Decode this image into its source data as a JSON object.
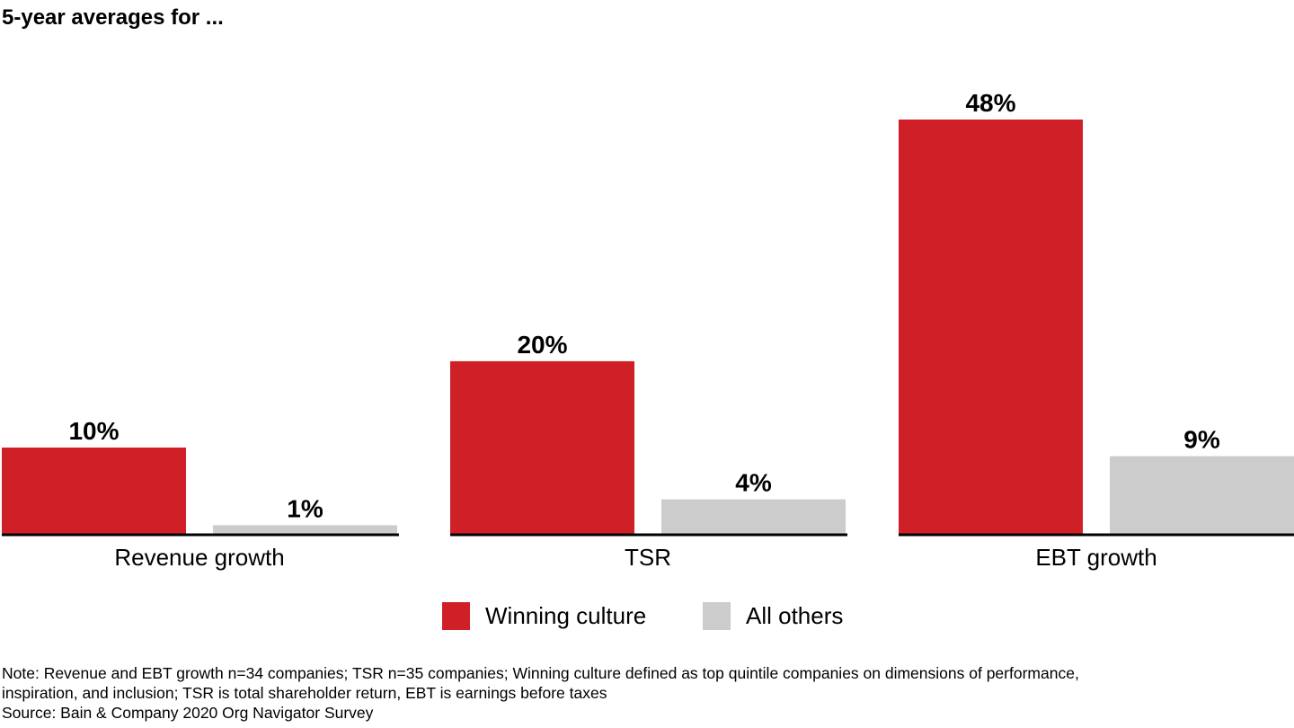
{
  "title": "5-year averages for ...",
  "colors": {
    "winning": "#cf2027",
    "others": "#cccccc",
    "axis": "#000000"
  },
  "chart_data": {
    "type": "bar",
    "categories": [
      "Revenue growth",
      "TSR",
      "EBT growth"
    ],
    "series": [
      {
        "name": "Winning culture",
        "values": [
          10,
          20,
          48
        ],
        "labels": [
          "10%",
          "20%",
          "48%"
        ]
      },
      {
        "name": "All others",
        "values": [
          1,
          4,
          9
        ],
        "labels": [
          "1%",
          "4%",
          "9%"
        ]
      }
    ],
    "ylim": [
      0,
      48
    ],
    "grid": false,
    "legend": "bottom-center"
  },
  "note": {
    "line1": "Note: Revenue and EBT growth n=34 companies; TSR n=35 companies; Winning culture defined as top quintile companies on dimensions of performance,",
    "line2": "inspiration, and inclusion; TSR is total shareholder return, EBT is earnings before taxes",
    "source": "Source: Bain & Company 2020 Org Navigator Survey"
  }
}
